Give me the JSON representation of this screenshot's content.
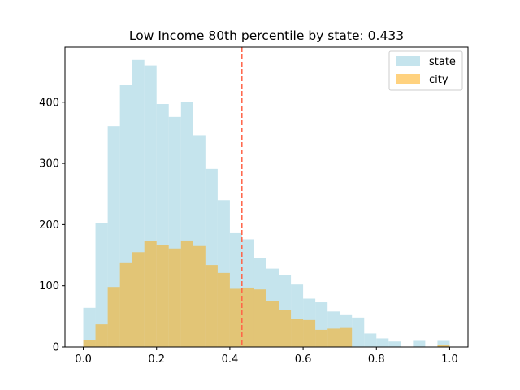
{
  "chart_data": {
    "type": "histogram",
    "title": "Low Income 80th percentile by state: 0.433",
    "xlabel": "",
    "ylabel": "",
    "xlim": [
      -0.05,
      1.05
    ],
    "ylim": [
      0,
      490
    ],
    "xticks": [
      0.0,
      0.2,
      0.4,
      0.6,
      0.8,
      1.0
    ],
    "xtick_labels": [
      "0.0",
      "0.2",
      "0.4",
      "0.6",
      "0.8",
      "1.0"
    ],
    "yticks": [
      0,
      100,
      200,
      300,
      400
    ],
    "ytick_labels": [
      "0",
      "100",
      "200",
      "300",
      "400"
    ],
    "bin_edges": [
      0.0,
      0.0333,
      0.0667,
      0.1,
      0.1333,
      0.1667,
      0.2,
      0.2333,
      0.2667,
      0.3,
      0.3333,
      0.3667,
      0.4,
      0.4333,
      0.4667,
      0.5,
      0.5333,
      0.5667,
      0.6,
      0.6333,
      0.6667,
      0.7,
      0.7333,
      0.7667,
      0.8,
      0.8333,
      0.8667,
      0.9,
      0.9333,
      0.9667,
      1.0
    ],
    "series": [
      {
        "name": "state",
        "color": "#add8e6",
        "opacity": 0.7,
        "values": [
          64,
          202,
          361,
          428,
          469,
          460,
          397,
          376,
          401,
          346,
          291,
          240,
          186,
          176,
          146,
          128,
          118,
          102,
          79,
          73,
          58,
          52,
          48,
          22,
          14,
          9,
          0,
          10,
          0,
          10
        ]
      },
      {
        "name": "city",
        "color": "#ffa500",
        "opacity": 0.5,
        "values": [
          11,
          37,
          98,
          137,
          155,
          173,
          167,
          161,
          174,
          165,
          134,
          121,
          95,
          97,
          94,
          75,
          60,
          46,
          44,
          28,
          30,
          31,
          0,
          0,
          0,
          0,
          0,
          0,
          0,
          3
        ]
      }
    ],
    "reference_line": {
      "x": 0.433,
      "color": "#ff6347",
      "style": "dashed"
    },
    "legend_position": "upper-right",
    "grid": false
  }
}
